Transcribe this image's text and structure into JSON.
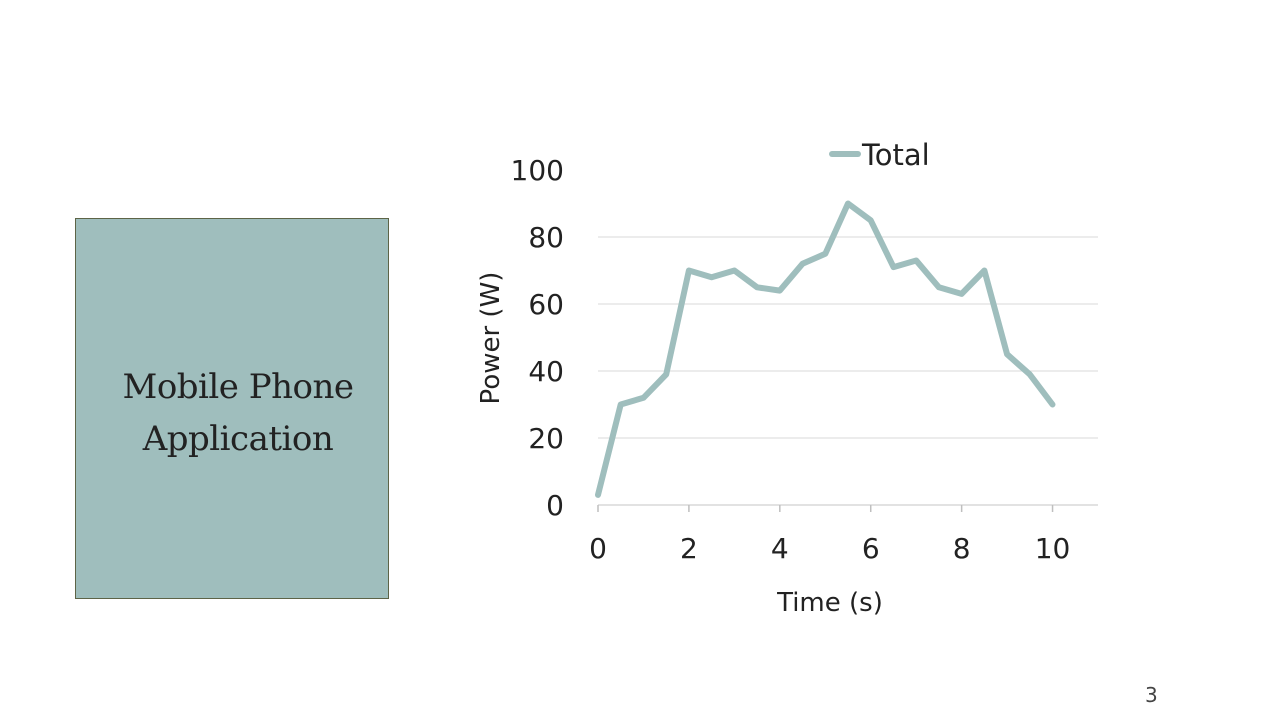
{
  "slide": {
    "box_text_line1": "Mobile Phone",
    "box_text_line2": "Application",
    "page_number": "3"
  },
  "colors": {
    "box_fill": "#9fbebd",
    "box_border": "#5d6447",
    "series": "#9fbebd",
    "grid": "#d9d9d9"
  },
  "chart_data": {
    "type": "line",
    "xlabel": "Time (s)",
    "ylabel": "Power (W)",
    "xlim": [
      0,
      11
    ],
    "ylim": [
      0,
      100
    ],
    "x_ticks": [
      0,
      2,
      4,
      6,
      8,
      10
    ],
    "y_ticks": [
      0,
      20,
      40,
      60,
      80,
      100
    ],
    "grid": true,
    "legend": "top",
    "series": [
      {
        "name": "Total",
        "x": [
          0,
          0.5,
          1,
          1.5,
          2,
          2.5,
          3,
          3.5,
          4,
          4.5,
          5,
          5.5,
          6,
          6.5,
          7,
          7.5,
          8,
          8.5,
          9,
          9.5,
          10
        ],
        "y": [
          3,
          30,
          32,
          39,
          70,
          68,
          70,
          65,
          64,
          72,
          75,
          90,
          85,
          71,
          73,
          65,
          63,
          70,
          45,
          39,
          30
        ]
      }
    ]
  }
}
